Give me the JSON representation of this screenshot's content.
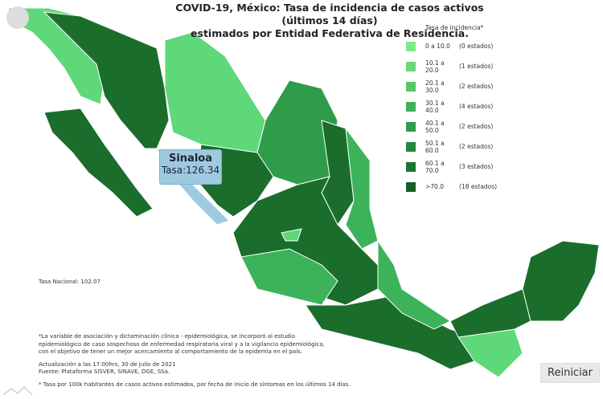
{
  "title": [
    "COVID-19, México: Tasa de incidencia de casos activos (últimos 14 días)",
    "estimados por Entidad Federativa de Residencia."
  ],
  "legend": {
    "title": "Tasa de incidencia*",
    "items": [
      {
        "range": "0 a 10.0",
        "count": "(0 estados)",
        "color": "#7ee88f"
      },
      {
        "range": "10.1 a 20.0",
        "count": "(1 estados)",
        "color": "#6ad87a"
      },
      {
        "range": "20.1 a 30.0",
        "count": "(2 estados)",
        "color": "#55c868"
      },
      {
        "range": "30.1 a 40.0",
        "count": "(4 estados)",
        "color": "#3cb35a"
      },
      {
        "range": "40.1 a 50.0",
        "count": "(2 estados)",
        "color": "#2f9c4a"
      },
      {
        "range": "50.1 a 60.0",
        "count": "(2 estados)",
        "color": "#24863c"
      },
      {
        "range": "60.1 a 70.0",
        "count": "(3 estados)",
        "color": "#1d7532"
      },
      {
        "range": ">70.0",
        "count": "(18 estados)",
        "color": "#155e26"
      }
    ]
  },
  "tooltip": {
    "state": "Sinaloa",
    "rate": "Tasa:126.34"
  },
  "national_rate": "Tasa Nacional: 102.07",
  "notes": [
    "*La variable de asociación y dictaminación clínica - epidemiológica, se incorporó al estudio",
    "epidemiológico de caso sospechoso de enfermedad respiratoria viral y a la vigilancia epidemiológica,",
    "con el objetivo de tener un mejor acercamiento al comportamiento de la epidemia en el país.",
    "Actualización a las 17:00hrs, 30 de julio de 2021",
    "Fuente: Plataforma SISVER, SINAVE, DGE, SSa.",
    "* Tasa por 100k habitantes de casos activos estimados, por fecha de inicio de síntomas en los últimos 14 días."
  ],
  "button": "Reiniciar"
}
